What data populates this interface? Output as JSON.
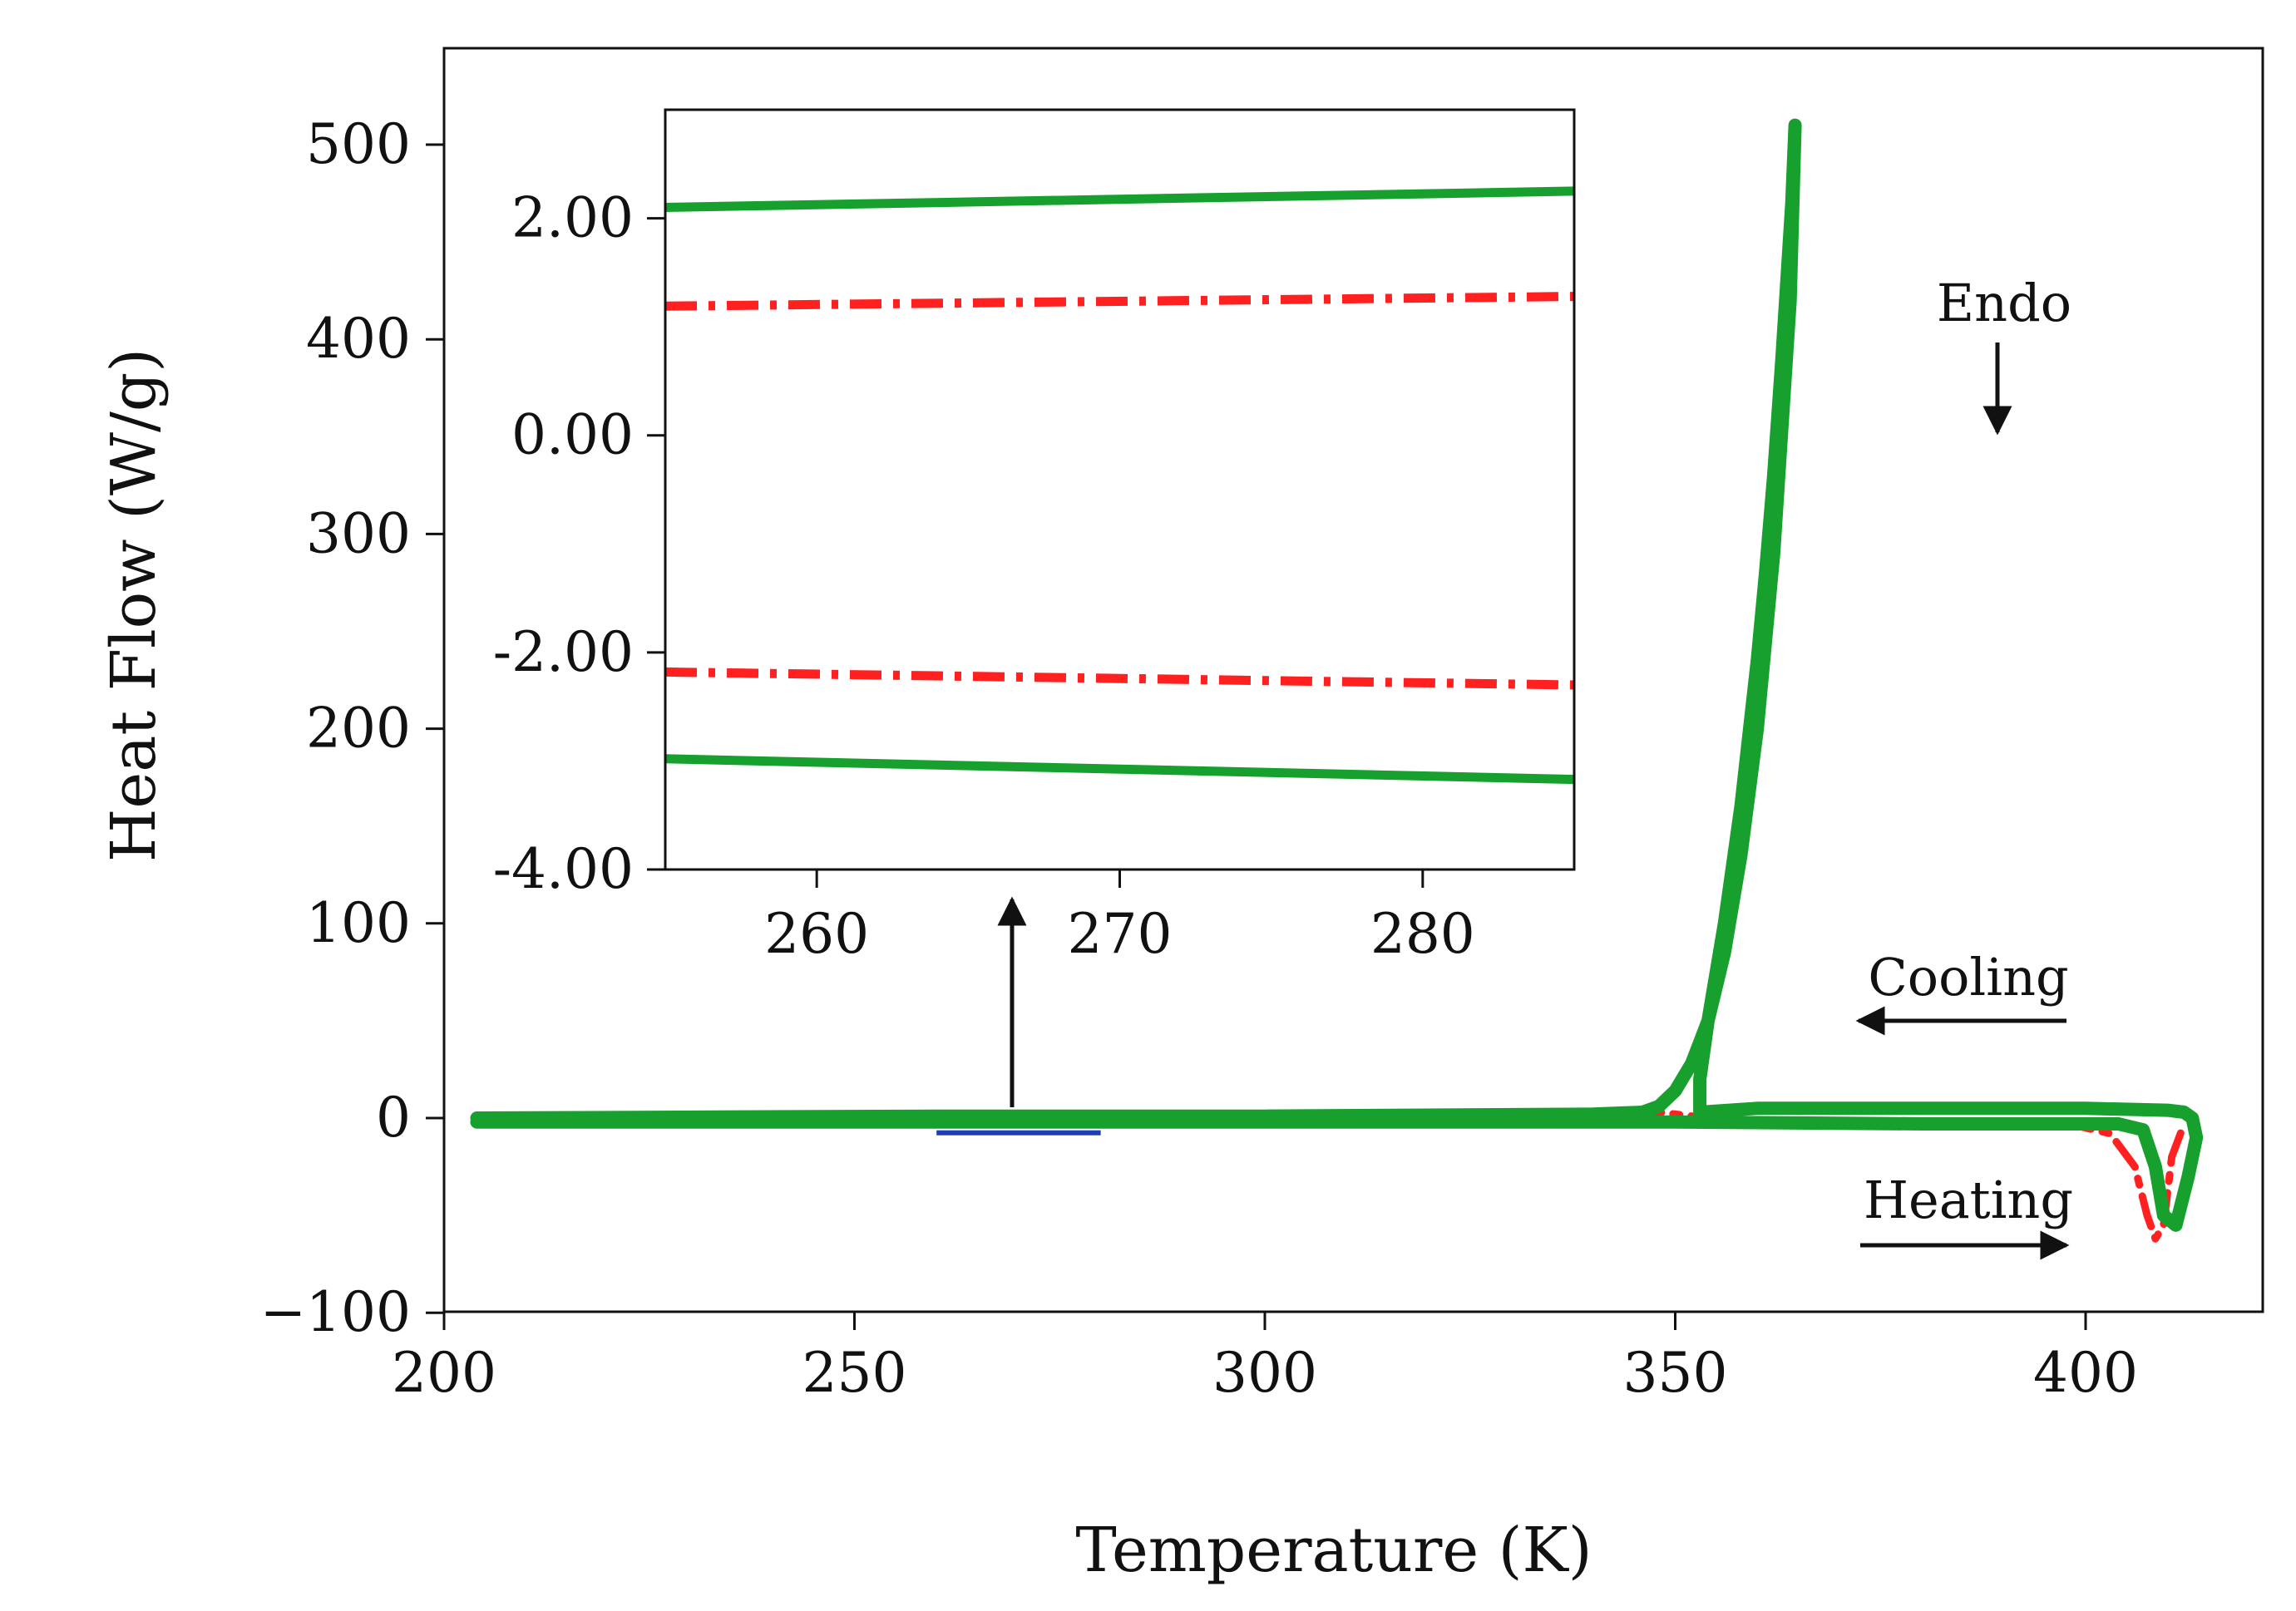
{
  "chart_data": [
    {
      "type": "line",
      "title": "",
      "xlabel": "Temperature (K)",
      "ylabel": "Heat Flow (W/g)",
      "xlim": [
        200,
        425
      ],
      "ylim": [
        -100,
        550
      ],
      "xticks": [
        200,
        250,
        300,
        350,
        400
      ],
      "xtick_labels": [
        "200",
        "250",
        "300",
        "350",
        "400"
      ],
      "yticks": [
        -100,
        0,
        100,
        200,
        300,
        400,
        500
      ],
      "ytick_labels": [
        "−100",
        "0",
        "100",
        "200",
        "300",
        "400",
        "500"
      ],
      "grid": false,
      "series": [
        {
          "style": "dash-dot",
          "color": "#ff2020",
          "x": [
            322,
            340,
            348,
            352,
            360,
            380,
            398,
            403,
            406,
            407.5,
            408.5,
            409.5,
            410.5,
            412
          ],
          "y": [
            0,
            1,
            3,
            1,
            -3,
            -3,
            -3,
            -8,
            -25,
            -50,
            -62,
            -55,
            -20,
            -3
          ]
        },
        {
          "style": "solid",
          "color": "#17a02d",
          "x": [
            204,
            260,
            300,
            340,
            346,
            348,
            350,
            352,
            354,
            356,
            358,
            360,
            362,
            364,
            364.6,
            364.2,
            363,
            362,
            361,
            360,
            358,
            356,
            354,
            353,
            353,
            360,
            380,
            400,
            410,
            412,
            413,
            413.5,
            412.5,
            411,
            409.5,
            408.5,
            407,
            404,
            400,
            380,
            350,
            300,
            250,
            204
          ],
          "y": [
            0,
            1,
            1,
            2,
            3,
            6,
            14,
            28,
            50,
            85,
            135,
            200,
            290,
            420,
            510,
            470,
            390,
            330,
            280,
            235,
            160,
            100,
            50,
            20,
            3,
            5,
            5,
            5,
            4,
            3,
            0,
            -10,
            -30,
            -55,
            -50,
            -25,
            -6,
            -3,
            -3,
            -3,
            -2,
            -2,
            -2,
            -2
          ]
        }
      ],
      "annotations": {
        "endo_label": "Endo",
        "cooling_label": "Cooling",
        "heating_label": "Heating",
        "zoom_marker": {
          "x_range": [
            260,
            280
          ],
          "y": -5,
          "color": "#1c3fb5"
        }
      }
    },
    {
      "type": "line",
      "title": "",
      "xlabel": "",
      "ylabel": "",
      "xlim": [
        255,
        285
      ],
      "ylim": [
        -4,
        3
      ],
      "xticks": [
        260,
        270,
        280
      ],
      "xtick_labels": [
        "260",
        "270",
        "280"
      ],
      "yticks": [
        2,
        0,
        -2,
        -4
      ],
      "ytick_labels": [
        "2.00",
        "0.00",
        "-2.00",
        "-4.00"
      ],
      "grid": false,
      "series": [
        {
          "style": "solid",
          "color": "#17a02d",
          "x": [
            255,
            285
          ],
          "y": [
            2.1,
            2.25
          ]
        },
        {
          "style": "dash-dot",
          "color": "#ff2020",
          "x": [
            255,
            285
          ],
          "y": [
            1.19,
            1.28
          ]
        },
        {
          "style": "dash-dot",
          "color": "#ff2020",
          "x": [
            255,
            285
          ],
          "y": [
            -2.18,
            -2.3
          ]
        },
        {
          "style": "solid",
          "color": "#17a02d",
          "x": [
            255,
            285
          ],
          "y": [
            -2.98,
            -3.17
          ]
        }
      ]
    }
  ]
}
